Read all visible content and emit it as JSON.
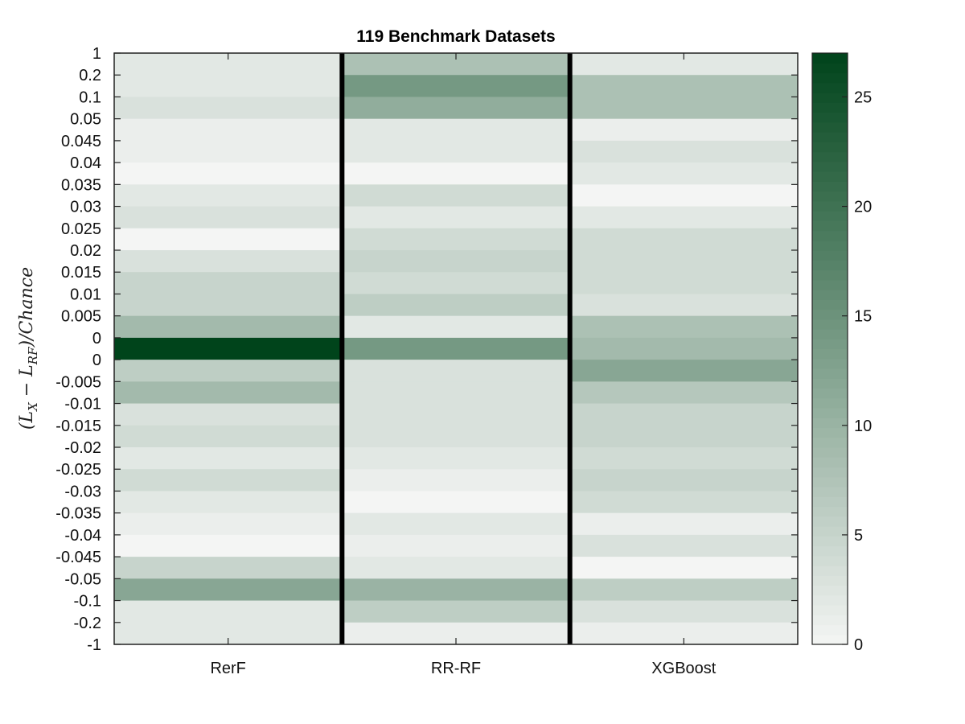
{
  "chart_data": {
    "type": "heatmap",
    "title": "119 Benchmark Datasets",
    "ylabel": "(L̂X − L̂RF)/Chance",
    "ylabel_parts": {
      "open": "(",
      "l1": "L",
      "s1": "X",
      "minus": " − ",
      "l2": "L",
      "s2": "RF",
      "close": ")/Chance"
    },
    "columns": [
      "RerF",
      "RR-RF",
      "XGBoost"
    ],
    "rows": [
      "1",
      "0.2",
      "0.1",
      "0.05",
      "0.045",
      "0.04",
      "0.035",
      "0.03",
      "0.025",
      "0.02",
      "0.015",
      "0.01",
      "0.005",
      "0",
      "0",
      "-0.005",
      "-0.01",
      "-0.015",
      "-0.02",
      "-0.025",
      "-0.03",
      "-0.035",
      "-0.04",
      "-0.045",
      "-0.05",
      "-0.1",
      "-0.2",
      "-1"
    ],
    "values": [
      [
        2,
        8,
        2
      ],
      [
        2,
        14,
        8
      ],
      [
        3,
        11,
        8
      ],
      [
        1,
        2,
        1
      ],
      [
        1,
        2,
        3
      ],
      [
        0,
        0,
        2
      ],
      [
        2,
        4,
        0
      ],
      [
        3,
        2,
        2
      ],
      [
        0,
        4,
        4
      ],
      [
        3,
        5,
        4
      ],
      [
        5,
        4,
        4
      ],
      [
        5,
        6,
        3
      ],
      [
        9,
        2,
        8
      ],
      [
        27,
        14,
        9
      ],
      [
        6,
        3,
        12
      ],
      [
        9,
        3,
        7
      ],
      [
        3,
        3,
        5
      ],
      [
        4,
        3,
        5
      ],
      [
        2,
        2,
        4
      ],
      [
        4,
        1,
        5
      ],
      [
        2,
        0,
        4
      ],
      [
        1,
        2,
        1
      ],
      [
        0,
        1,
        3
      ],
      [
        5,
        2,
        0
      ],
      [
        12,
        10,
        6
      ],
      [
        2,
        6,
        3
      ],
      [
        2,
        1,
        1
      ]
    ],
    "colorbar": {
      "min": 0,
      "max": 27,
      "ticks": [
        0,
        5,
        10,
        15,
        20,
        25
      ]
    },
    "colors": {
      "low": "#f4f5f4",
      "high": "#00441b",
      "separator": "#000000"
    }
  }
}
